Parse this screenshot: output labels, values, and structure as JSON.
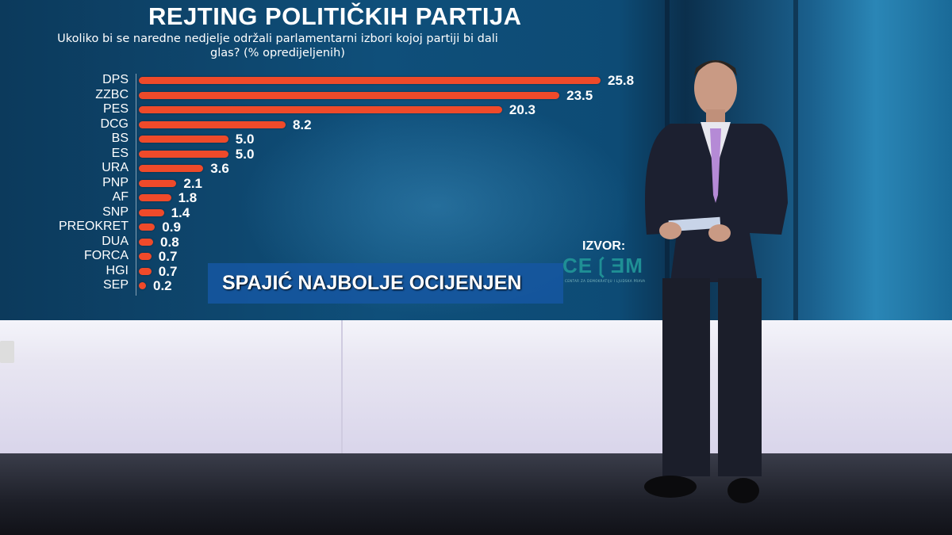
{
  "chart_data": {
    "type": "bar",
    "orientation": "horizontal",
    "title": "REJTING POLITIČKIH PARTIJA",
    "subtitle": "Ukoliko bi se naredne nedjelje održali parlamentarni izbori kojoj partiji bi dali glas? (% opredijeljenih)",
    "categories": [
      "DPS",
      "ZZBC",
      "PES",
      "DCG",
      "BS",
      "ES",
      "URA",
      "PNP",
      "AF",
      "SNP",
      "PREOKRET",
      "DUA",
      "FORCA",
      "HGI",
      "SEP"
    ],
    "values": [
      25.8,
      23.5,
      20.3,
      8.2,
      5.0,
      5.0,
      3.6,
      2.1,
      1.8,
      1.4,
      0.9,
      0.8,
      0.7,
      0.7,
      0.2
    ],
    "value_labels": [
      "25.8",
      "23.5",
      "20.3",
      "8.2",
      "5.0",
      "5.0",
      "3.6",
      "2.1",
      "1.8",
      "1.4",
      "0.9",
      "0.8",
      "0.7",
      "0.7",
      "0.2"
    ],
    "xlim": [
      0,
      26
    ],
    "grid": false,
    "bar_color": "#ef4a2a"
  },
  "source": {
    "label": "IZVOR:",
    "logo_text": "CEDEM",
    "logo_subtext": "CENTAR ZA DEMOKRATIJU I LJUDSKA PRAVA"
  },
  "lower_third": {
    "headline": "SPAJIĆ NAJBOLJE OCIJENJEN"
  }
}
